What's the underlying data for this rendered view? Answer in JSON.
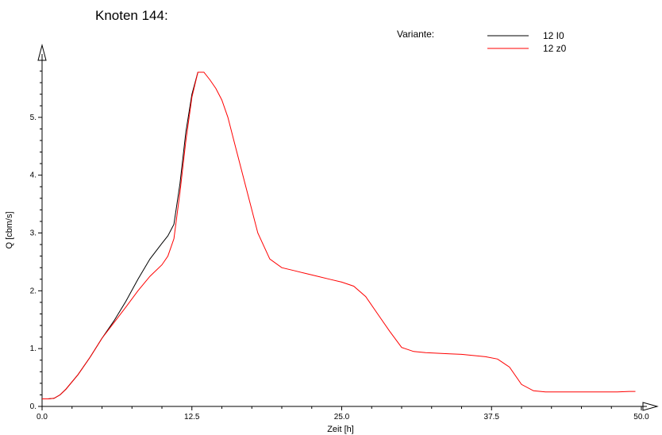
{
  "chart_data": {
    "type": "line",
    "title": "Knoten 144:",
    "xlabel": "Zeit [h]",
    "ylabel": "Q [cbm/s]",
    "xlim": [
      0,
      50
    ],
    "ylim": [
      0,
      6
    ],
    "x_tick_labels": [
      "0.0",
      "12.5",
      "25.0",
      "37.5",
      "50.0"
    ],
    "x_tick_values": [
      0,
      12.5,
      25,
      37.5,
      50
    ],
    "y_tick_labels": [
      "0.",
      "1.",
      "2.",
      "3.",
      "4.",
      "5."
    ],
    "y_tick_values": [
      0,
      1,
      2,
      3,
      4,
      5
    ],
    "grid": false,
    "legend": {
      "title": "Variante:",
      "placement": "top-right"
    },
    "series": [
      {
        "name": "12 I0",
        "color": "#000000",
        "x": [
          0,
          0.5,
          1.0,
          1.5,
          2.0,
          3.0,
          4.0,
          5.0,
          6.0,
          7.0,
          8.0,
          9.0,
          10.0,
          10.5,
          11.0,
          11.5,
          12.0,
          12.5,
          13.0
        ],
        "y": [
          0.13,
          0.13,
          0.14,
          0.2,
          0.3,
          0.55,
          0.85,
          1.18,
          1.48,
          1.82,
          2.2,
          2.55,
          2.82,
          2.95,
          3.15,
          3.85,
          4.75,
          5.4,
          5.78
        ]
      },
      {
        "name": "12 z0",
        "color": "#ff0000",
        "x": [
          0,
          0.5,
          1.0,
          1.5,
          2.0,
          3.0,
          4.0,
          5.0,
          6.0,
          7.0,
          8.0,
          9.0,
          10.0,
          10.5,
          11.0,
          11.5,
          12.0,
          12.5,
          13.0,
          13.5,
          14.0,
          14.5,
          15.0,
          15.5,
          16.0,
          17.0,
          18.0,
          19.0,
          20.0,
          21.0,
          22.0,
          23.0,
          24.0,
          25.0,
          26.0,
          27.0,
          28.0,
          29.0,
          30.0,
          31.0,
          32.0,
          33.0,
          34.0,
          35.0,
          36.0,
          37.0,
          38.0,
          39.0,
          40.0,
          41.0,
          42.0,
          43.0,
          44.0,
          45.0,
          46.0,
          47.0,
          48.0,
          49.0,
          49.5
        ],
        "y": [
          0.13,
          0.13,
          0.14,
          0.2,
          0.3,
          0.55,
          0.85,
          1.18,
          1.45,
          1.72,
          2.0,
          2.25,
          2.45,
          2.6,
          2.9,
          3.7,
          4.6,
          5.35,
          5.78,
          5.78,
          5.65,
          5.5,
          5.3,
          5.0,
          4.6,
          3.8,
          3.0,
          2.55,
          2.4,
          2.35,
          2.3,
          2.25,
          2.2,
          2.15,
          2.08,
          1.9,
          1.6,
          1.3,
          1.02,
          0.95,
          0.93,
          0.92,
          0.91,
          0.9,
          0.88,
          0.86,
          0.82,
          0.68,
          0.38,
          0.27,
          0.25,
          0.25,
          0.25,
          0.25,
          0.25,
          0.25,
          0.25,
          0.26,
          0.26
        ]
      }
    ]
  }
}
